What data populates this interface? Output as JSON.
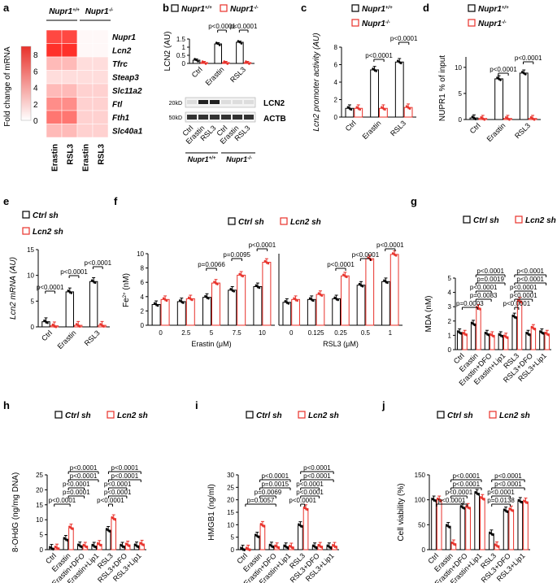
{
  "colors": {
    "black": "#000000",
    "red": "#e8312a",
    "grey": "#555555",
    "heat_low": "#ffffff",
    "heat_high": "#e8312a"
  },
  "panel_letters": [
    "a",
    "b",
    "c",
    "d",
    "e",
    "f",
    "g",
    "h",
    "i",
    "j"
  ],
  "legend_text": {
    "nupr_wt": "Nupr1+/+",
    "nupr_ko": "Nupr1-/-",
    "ctrl_sh": "Ctrl sh",
    "lcn2_sh": "Lcn2 sh"
  },
  "chart_data": [
    {
      "panel": "a",
      "type": "heatmap",
      "group_labels": [
        "Nupr1+/+",
        "Nupr1-/-"
      ],
      "columns": [
        "Erastin",
        "RSL3",
        "Erastin",
        "RSL3"
      ],
      "rows": [
        "Nupr1",
        "Lcn2",
        "Tfrc",
        "Steap3",
        "Slc11a2",
        "Ftl",
        "Fth1",
        "Slc40a1"
      ],
      "values": [
        [
          8,
          8,
          0.3,
          0.3
        ],
        [
          9,
          9,
          0.3,
          0.3
        ],
        [
          3,
          3,
          1.5,
          1.5
        ],
        [
          1.5,
          1.5,
          1.5,
          1.5
        ],
        [
          3,
          3,
          2,
          2
        ],
        [
          5,
          5,
          2,
          2
        ],
        [
          6,
          6,
          2,
          2
        ],
        [
          3,
          3,
          2,
          2
        ]
      ],
      "colorbar_label": "Fold change of mRNA",
      "colorbar_ticks": [
        0,
        2,
        4,
        6,
        8
      ],
      "range": [
        0,
        9
      ]
    },
    {
      "panel": "b",
      "type": "bar",
      "ylabel": "LCN2 (AU)",
      "ylim": [
        0,
        1.5
      ],
      "yticks": [
        0,
        0.5,
        1.0,
        1.5
      ],
      "categories": [
        "Ctrl",
        "Erastin",
        "RSL3"
      ],
      "series": [
        {
          "name": "Nupr1+/+",
          "values": [
            0.2,
            1.2,
            1.3
          ]
        },
        {
          "name": "Nupr1-/-",
          "values": [
            0.05,
            0.05,
            0.05
          ]
        }
      ],
      "annotations": [
        "p<0.0001",
        "p<0.0001"
      ],
      "blot": {
        "rows": [
          "LCN2",
          "ACTB"
        ],
        "markers": [
          "20kD",
          "50kD"
        ],
        "lanes": [
          "Ctrl",
          "Erastin",
          "RSL3",
          "Ctrl",
          "Erastin",
          "RSL3"
        ],
        "groups": [
          "Nupr1+/+",
          "Nupr1-/-"
        ]
      }
    },
    {
      "panel": "c",
      "type": "bar",
      "ylabel": "Lcn2 promoter activity (AU)",
      "ylim": [
        0,
        8
      ],
      "yticks": [
        0,
        2,
        4,
        6,
        8
      ],
      "categories": [
        "Ctrl",
        "Erastin",
        "RSL3"
      ],
      "series": [
        {
          "name": "Nupr1+/+",
          "values": [
            1.0,
            5.4,
            6.3
          ]
        },
        {
          "name": "Nupr1-/-",
          "values": [
            1.0,
            1.0,
            1.1
          ]
        }
      ],
      "annotations": [
        "p<0.0001",
        "p<0.0001"
      ]
    },
    {
      "panel": "d",
      "type": "bar",
      "ylabel": "NUPR1 % of input",
      "ylim": [
        0,
        12
      ],
      "yticks": [
        0,
        5,
        10
      ],
      "categories": [
        "Ctrl",
        "Erastin",
        "RSL3"
      ],
      "series": [
        {
          "name": "Nupr1+/+",
          "values": [
            0.3,
            7.8,
            8.9
          ]
        },
        {
          "name": "Nupr1-/-",
          "values": [
            0.2,
            0.2,
            0.2
          ]
        }
      ],
      "annotations": [
        "p<0.0001",
        "p<0.0001"
      ]
    },
    {
      "panel": "e",
      "type": "bar",
      "ylabel": "Lcn2 mRNA (AU)",
      "ylim": [
        0,
        15
      ],
      "yticks": [
        0,
        5,
        10,
        15
      ],
      "categories": [
        "Ctrl",
        "Erastin",
        "RSL3"
      ],
      "series": [
        {
          "name": "Ctrl sh",
          "values": [
            1.0,
            6.8,
            8.8
          ]
        },
        {
          "name": "Lcn2 sh",
          "values": [
            0.2,
            0.3,
            0.3
          ]
        }
      ],
      "annotations": [
        "p<0.0001",
        "p<0.0001",
        "p<0.0001"
      ]
    },
    {
      "panel": "f",
      "type": "bar",
      "ylabel": "Fe2+ (nM)",
      "ylim": [
        0,
        10
      ],
      "yticks": [
        0,
        2,
        4,
        6,
        8,
        10
      ],
      "subplots": [
        {
          "xlabel": "Erastin (μM)",
          "categories": [
            "0",
            "2.5",
            "5",
            "7.5",
            "10"
          ],
          "series": [
            {
              "name": "Ctrl sh",
              "values": [
                2.9,
                3.3,
                3.9,
                4.9,
                5.4
              ]
            },
            {
              "name": "Lcn2 sh",
              "values": [
                3.6,
                3.7,
                5.9,
                7.0,
                8.8
              ]
            }
          ],
          "annotations": [
            "p=0.0066",
            "p=0.0095",
            "p<0.0001"
          ]
        },
        {
          "xlabel": "RSL3 (μM)",
          "categories": [
            "0",
            "0.125",
            "0.25",
            "0.5",
            "1"
          ],
          "series": [
            {
              "name": "Ctrl sh",
              "values": [
                3.2,
                3.6,
                3.7,
                5.6,
                6.1
              ]
            },
            {
              "name": "Lcn2 sh",
              "values": [
                3.6,
                4.3,
                6.9,
                9.3,
                9.9
              ]
            }
          ],
          "annotations": [
            "p<0.0001",
            "p<0.0001",
            "p<0.0001"
          ]
        }
      ]
    },
    {
      "panel": "g",
      "type": "bar",
      "ylabel": "MDA (nM)",
      "ylim": [
        0,
        5
      ],
      "yticks": [
        0,
        1,
        2,
        3,
        4,
        5
      ],
      "categories": [
        "Ctrl",
        "Erastin",
        "Erastin+DFO",
        "Erastin+Lip1",
        "RSL3",
        "RSL3+DFO",
        "RSL3+Lip1"
      ],
      "series": [
        {
          "name": "Ctrl sh",
          "values": [
            1.2,
            1.8,
            1.1,
            1.0,
            2.3,
            1.1,
            1.2
          ]
        },
        {
          "name": "Lcn2 sh",
          "values": [
            1.1,
            2.9,
            1.0,
            0.9,
            3.4,
            1.5,
            1.1
          ]
        }
      ],
      "annotations_left": [
        "p<0.0001",
        "p=0.0019",
        "p<0.0001",
        "p=0.0083",
        "p=0.0003"
      ],
      "annotations_right": [
        "p<0.0001",
        "p<0.0001",
        "p<0.0001",
        "p<0.0001",
        "p<0.0001"
      ]
    },
    {
      "panel": "h",
      "type": "bar",
      "ylabel": "8-OHdG (ng/mg DNA)",
      "ylim": [
        0,
        25
      ],
      "yticks": [
        0,
        5,
        10,
        15,
        20,
        25
      ],
      "categories": [
        "Ctrl",
        "Erastin",
        "Erastin+DFO",
        "Erastin+Lip1",
        "RSL3",
        "RSL3+DFO",
        "RSL3+Lip1"
      ],
      "series": [
        {
          "name": "Ctrl sh",
          "values": [
            0.5,
            3.5,
            1.3,
            1.2,
            6.5,
            1.2,
            1.3
          ]
        },
        {
          "name": "Lcn2 sh",
          "values": [
            0.6,
            7.3,
            1.2,
            1.8,
            10.4,
            1.6,
            1.9
          ]
        }
      ],
      "annotations_left": [
        "p<0.0001",
        "p<0.0001",
        "p<0.0001",
        "p=0.0001",
        "p<0.0001"
      ],
      "annotations_right": [
        "p<0.0001",
        "p<0.0001",
        "p<0.0001",
        "p<0.0001",
        "p<0.0001"
      ]
    },
    {
      "panel": "i",
      "type": "bar",
      "ylabel": "HMGB1 (ng/ml)",
      "ylim": [
        0,
        30
      ],
      "yticks": [
        0,
        5,
        10,
        15,
        20,
        25,
        30
      ],
      "categories": [
        "Ctrl",
        "Erastin",
        "Erastin+DFO",
        "Erastin+Lip1",
        "RSL3",
        "RSL3+DFO",
        "RSL3+Lip1"
      ],
      "series": [
        {
          "name": "Ctrl sh",
          "values": [
            0.3,
            5.5,
            1.5,
            1.2,
            9.7,
            1.2,
            1.2
          ]
        },
        {
          "name": "Lcn2 sh",
          "values": [
            0.3,
            9.8,
            1.2,
            1.1,
            16.5,
            1.4,
            1.4
          ]
        }
      ],
      "annotations_left": [
        "p<0.0001",
        "p=0.0015",
        "p=0.0069",
        "p=0.0057"
      ],
      "annotations_right": [
        "p<0.0001",
        "p<0.0001",
        "p<0.0001",
        "p<0.0001",
        "p<0.0001"
      ]
    },
    {
      "panel": "j",
      "type": "bar",
      "ylabel": "Cell viability (%)",
      "ylim": [
        0,
        150
      ],
      "yticks": [
        0,
        50,
        100,
        150
      ],
      "categories": [
        "Ctrl",
        "Erastin",
        "Erastin+DFO",
        "Erastin+Lip1",
        "RSL3",
        "RSL3+DFO",
        "RSL3+Lip1"
      ],
      "series": [
        {
          "name": "Ctrl sh",
          "values": [
            100,
            47,
            85,
            113,
            32,
            78,
            97
          ]
        },
        {
          "name": "Lcn2 sh",
          "values": [
            100,
            12,
            85,
            103,
            8,
            80,
            96
          ]
        }
      ],
      "annotations_left": [
        "p<0.0001",
        "p<0.0001",
        "p<0.0001",
        "p<0.0001"
      ],
      "annotations_right": [
        "p<0.0001",
        "p<0.0001",
        "p<0.0001",
        "p=0.0138"
      ]
    }
  ]
}
